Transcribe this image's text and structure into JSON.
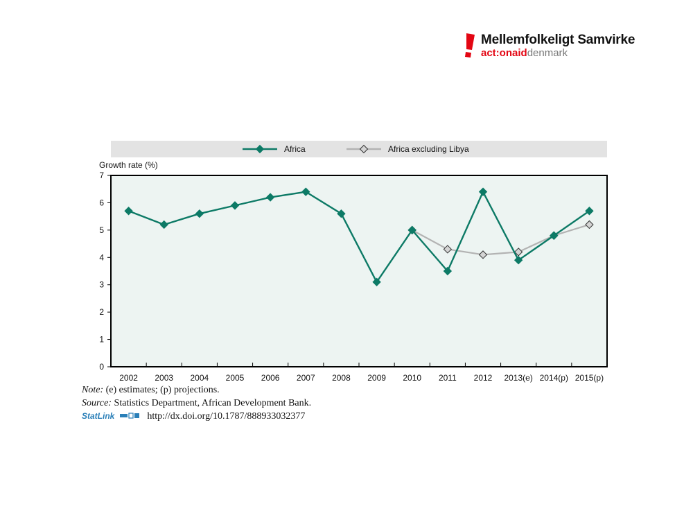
{
  "logo": {
    "title": "Mellemfolkeligt Samvirke",
    "sub_brand": "act:onaid",
    "sub_country": "denmark",
    "brand_color": "#e30613"
  },
  "chart_data": {
    "type": "line",
    "title": "",
    "xlabel": "",
    "ylabel": "Growth rate (%)",
    "ylim": [
      0,
      7
    ],
    "yticks": [
      "0",
      "1",
      "2",
      "3",
      "4",
      "5",
      "6",
      "7"
    ],
    "categories": [
      "2002",
      "2003",
      "2004",
      "2005",
      "2006",
      "2007",
      "2008",
      "2009",
      "2010",
      "2011",
      "2012",
      "2013(e)",
      "2014(p)",
      "2015(p)"
    ],
    "series": [
      {
        "name": "Africa",
        "color": "#0d7a66",
        "marker": "diamond-filled",
        "values": [
          5.7,
          5.2,
          5.6,
          5.9,
          6.2,
          6.4,
          5.6,
          3.1,
          5.0,
          3.5,
          6.4,
          3.9,
          4.8,
          5.7
        ]
      },
      {
        "name": "Africa excluding Libya",
        "color": "#b3b3b3",
        "marker": "diamond-open",
        "values": [
          null,
          null,
          null,
          null,
          null,
          null,
          null,
          null,
          5.0,
          4.3,
          4.1,
          4.2,
          4.8,
          5.2
        ]
      }
    ],
    "legend_position": "top",
    "plot_background": "#edf4f2",
    "grid": false
  },
  "notes": {
    "note_label": "Note:",
    "note_text": "(e) estimates; (p) projections.",
    "source_label": "Source:",
    "source_text": "Statistics Department, African Development Bank.",
    "statlink_label": "StatLink",
    "statlink_url": "http://dx.doi.org/10.1787/888933032377"
  }
}
